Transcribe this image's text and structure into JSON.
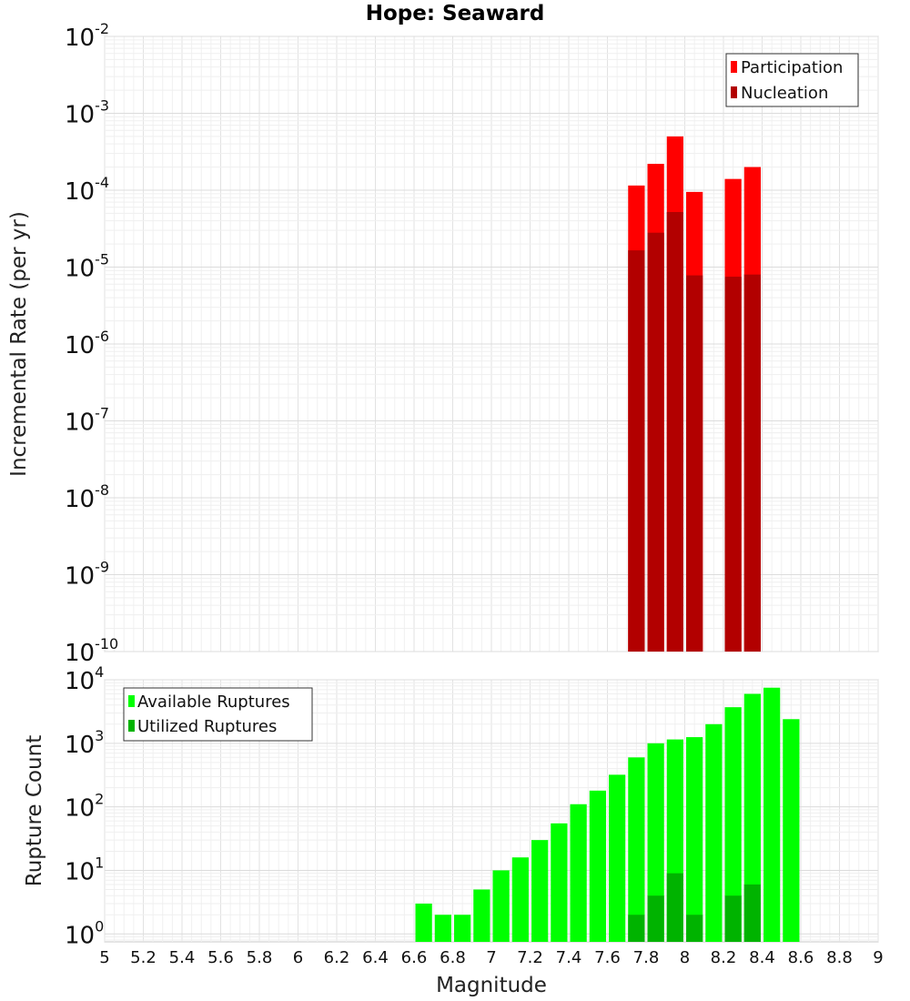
{
  "chart_data": [
    {
      "type": "bar",
      "title": "Hope: Seaward",
      "ylabel": "Incremental Rate (per yr)",
      "xlim": [
        5,
        9
      ],
      "ylim": [
        1e-10,
        0.01
      ],
      "yscale": "log",
      "grid": true,
      "legend_position": "top-right",
      "bar_width": 0.1,
      "y_ticks": [
        {
          "base": "10",
          "exp": "-2",
          "value": 0.01
        },
        {
          "base": "10",
          "exp": "-3",
          "value": 0.001
        },
        {
          "base": "10",
          "exp": "-4",
          "value": 0.0001
        },
        {
          "base": "10",
          "exp": "-5",
          "value": 1e-05
        },
        {
          "base": "10",
          "exp": "-6",
          "value": 1e-06
        },
        {
          "base": "10",
          "exp": "-7",
          "value": 1e-07
        },
        {
          "base": "10",
          "exp": "-8",
          "value": 1e-08
        },
        {
          "base": "10",
          "exp": "-9",
          "value": 1e-09
        },
        {
          "base": "10",
          "exp": "-10",
          "value": 1e-10
        }
      ],
      "x": [
        7.75,
        7.85,
        7.95,
        8.05,
        8.25,
        8.35
      ],
      "series": [
        {
          "name": "Participation",
          "color": "#ff0000",
          "values": [
            0.000115,
            0.00022,
            0.0005,
            9.5e-05,
            0.00014,
            0.0002
          ]
        },
        {
          "name": "Nucleation",
          "color": "#b20000",
          "values": [
            1.65e-05,
            2.8e-05,
            5.2e-05,
            7.8e-06,
            7.5e-06,
            8e-06
          ]
        }
      ]
    },
    {
      "type": "bar",
      "ylabel": "Rupture Count",
      "xlabel": "Magnitude",
      "xlim": [
        5,
        9
      ],
      "ylim": [
        0.75,
        10000
      ],
      "yscale": "log",
      "grid": true,
      "legend_position": "top-left",
      "bar_width": 0.1,
      "x_ticks": [
        "5",
        "5.2",
        "5.4",
        "5.6",
        "5.8",
        "6",
        "6.2",
        "6.4",
        "6.6",
        "6.8",
        "7",
        "7.2",
        "7.4",
        "7.6",
        "7.8",
        "8",
        "8.2",
        "8.4",
        "8.6",
        "8.8",
        "9"
      ],
      "y_ticks": [
        {
          "base": "10",
          "exp": "4",
          "value": 10000
        },
        {
          "base": "10",
          "exp": "3",
          "value": 1000
        },
        {
          "base": "10",
          "exp": "2",
          "value": 100
        },
        {
          "base": "10",
          "exp": "1",
          "value": 10
        },
        {
          "base": "10",
          "exp": "0",
          "value": 1
        }
      ],
      "x": [
        6.65,
        6.75,
        6.85,
        6.95,
        7.05,
        7.15,
        7.25,
        7.35,
        7.45,
        7.55,
        7.65,
        7.75,
        7.85,
        7.95,
        8.05,
        8.15,
        8.25,
        8.35,
        8.45,
        8.55
      ],
      "series": [
        {
          "name": "Available Ruptures",
          "color": "#00ff00",
          "values": [
            3,
            2,
            2,
            5,
            10,
            16,
            30,
            55,
            110,
            180,
            320,
            600,
            1000,
            1150,
            1250,
            2000,
            3700,
            6000,
            7500,
            2400
          ]
        },
        {
          "name": "Utilized Ruptures",
          "color": "#00b300",
          "values": [
            0,
            0,
            0,
            0,
            0,
            0,
            0,
            0,
            0,
            0,
            0,
            2,
            4,
            9,
            2,
            0,
            4,
            6,
            0,
            0
          ]
        }
      ]
    }
  ]
}
